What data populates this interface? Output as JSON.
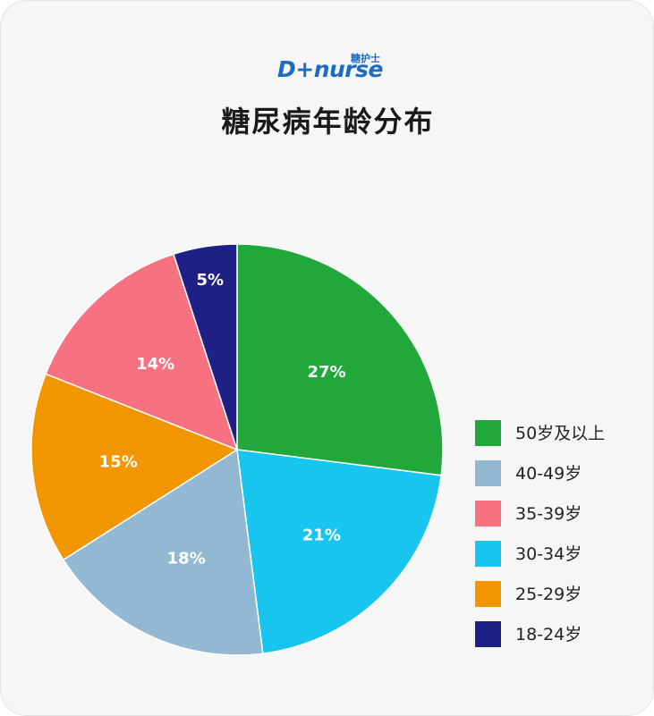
{
  "logo": {
    "main": "D+nurse",
    "sub": "糖护士"
  },
  "title": "糖尿病年龄分布",
  "chart_data": {
    "type": "pie",
    "title": "糖尿病年龄分布",
    "legend_position": "right",
    "slices": [
      {
        "label": "50岁及以上",
        "value": 27,
        "display": "27%",
        "color": "#22a83a"
      },
      {
        "label": "30-34岁",
        "value": 21,
        "display": "21%",
        "color": "#17c5ee"
      },
      {
        "label": "40-49岁",
        "value": 18,
        "display": "18%",
        "color": "#92b8d2"
      },
      {
        "label": "25-29岁",
        "value": 15,
        "display": "15%",
        "color": "#f29600"
      },
      {
        "label": "35-39岁",
        "value": 14,
        "display": "14%",
        "color": "#f87181"
      },
      {
        "label": "18-24岁",
        "value": 5,
        "display": "5%",
        "color": "#1f2085"
      }
    ],
    "legend_order": [
      "50岁及以上",
      "40-49岁",
      "35-39岁",
      "30-34岁",
      "25-29岁",
      "18-24岁"
    ]
  }
}
